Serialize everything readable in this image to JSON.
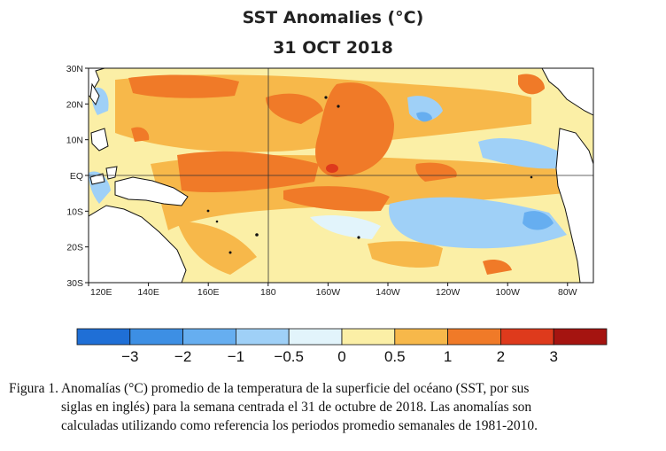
{
  "title": "SST Anomalies (°C)",
  "subtitle": "31 OCT 2018",
  "lat_labels": [
    "30N",
    "20N",
    "10N",
    "EQ",
    "10S",
    "20S",
    "30S"
  ],
  "lon_labels": [
    "120E",
    "140E",
    "160E",
    "180",
    "160W",
    "140W",
    "120W",
    "100W",
    "80W"
  ],
  "colorbar": {
    "labels": [
      "−3",
      "−2",
      "−1",
      "−0.5",
      "0",
      "0.5",
      "1",
      "2",
      "3"
    ],
    "colors": [
      "#1f6fd6",
      "#3d8fe4",
      "#66aef0",
      "#9fd0f7",
      "#e2f4fb",
      "#fbefa6",
      "#f7b84a",
      "#f07a28",
      "#de3a1c",
      "#a51410"
    ]
  },
  "caption": {
    "line1": "Figura 1. Anomalías (°C) promedio de la temperatura de la superficie del océano (SST, por sus",
    "line2": "siglas en inglés) para la semana centrada el 31 de octubre de 2018. Las anomalías son",
    "line3": "calculadas utilizando como referencia los periodos promedio semanales de 1981-2010."
  },
  "colors": {
    "land": "#ffffff",
    "coast": "#111111",
    "grid": "#333333"
  }
}
